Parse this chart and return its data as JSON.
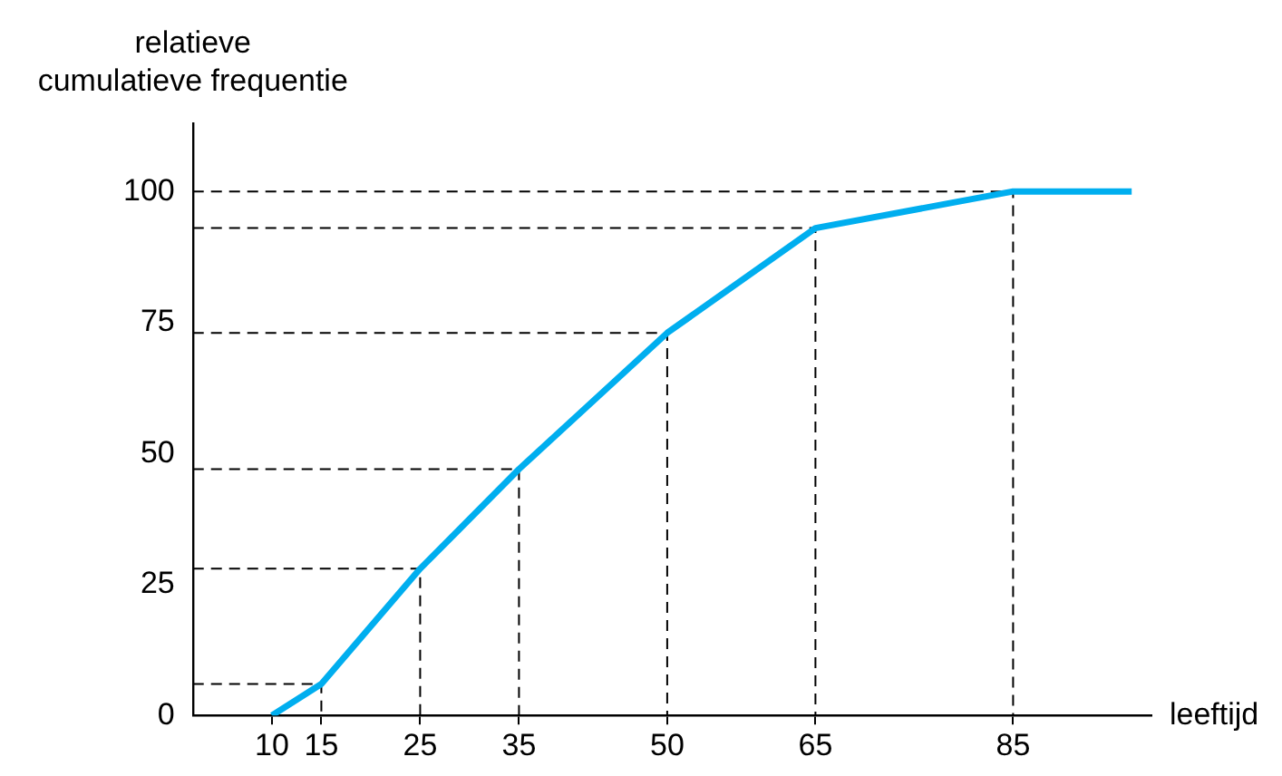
{
  "chart_data": {
    "type": "line",
    "xlabel": "leeftijd",
    "ylabel": "relatieve cumulatieve frequentie",
    "xlim": [
      2,
      99
    ],
    "xticks": [
      10,
      15,
      25,
      35,
      50,
      65,
      85
    ],
    "ylim": [
      0,
      113
    ],
    "yticks": [
      0,
      25,
      50,
      75,
      100
    ],
    "grid": false,
    "legend": false,
    "marker": "none",
    "series": [
      {
        "color": "#00aeef",
        "x": [
          10,
          15,
          25,
          35,
          50,
          65,
          85,
          97
        ],
        "values": [
          0,
          6,
          28,
          47,
          73,
          93,
          100,
          100
        ],
        "line_style": "solid"
      },
      {
        "color": "#000000",
        "x": [
          2,
          15,
          15
        ],
        "values": [
          6,
          6,
          0
        ],
        "line_style": "dashed"
      },
      {
        "color": "#000000",
        "x": [
          2,
          25,
          25
        ],
        "values": [
          28,
          28,
          0
        ],
        "line_style": "dashed"
      },
      {
        "color": "#000000",
        "x": [
          2,
          35,
          35
        ],
        "values": [
          47,
          47,
          0
        ],
        "line_style": "dashed"
      },
      {
        "color": "#000000",
        "x": [
          2,
          50,
          50
        ],
        "values": [
          73,
          73,
          0
        ],
        "line_style": "dashed"
      },
      {
        "color": "#000000",
        "x": [
          2,
          65,
          65
        ],
        "values": [
          93,
          93,
          0
        ],
        "line_style": "dashed"
      },
      {
        "color": "#000000",
        "x": [
          2,
          85,
          85
        ],
        "values": [
          100,
          100,
          0
        ],
        "line_style": "dashed"
      }
    ]
  }
}
